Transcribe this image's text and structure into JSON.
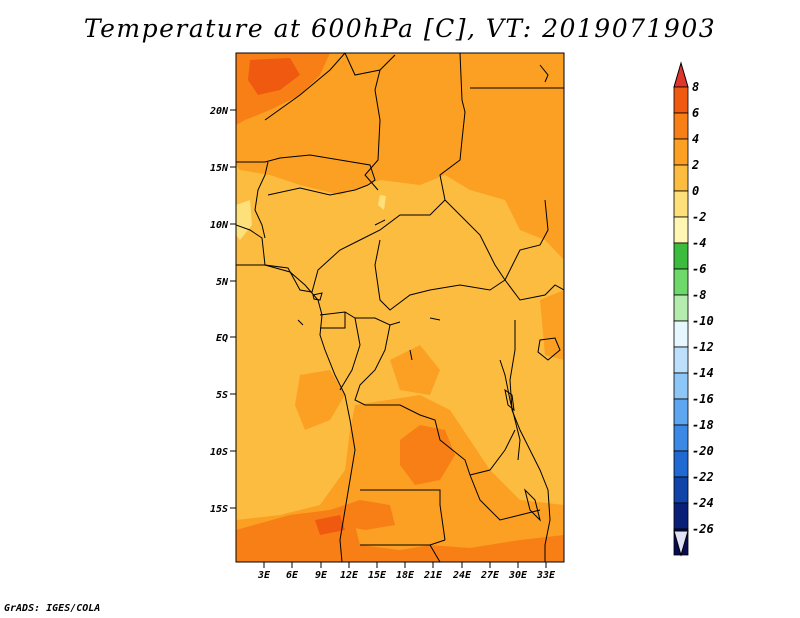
{
  "title": "Temperature at 600hPa [C], VT: 2019071903",
  "credit": "GrADS: IGES/COLA",
  "y_axis_labels": [
    "20N",
    "15N",
    "10N",
    "5N",
    "EQ",
    "5S",
    "10S",
    "15S"
  ],
  "x_axis_labels": [
    "3E",
    "6E",
    "9E",
    "12E",
    "15E",
    "18E",
    "21E",
    "24E",
    "27E",
    "30E",
    "33E"
  ],
  "legend": {
    "labels": [
      "8",
      "6",
      "4",
      "2",
      "0",
      "-2",
      "-4",
      "-6",
      "-8",
      "-10",
      "-12",
      "-14",
      "-16",
      "-18",
      "-20",
      "-22",
      "-24",
      "-26"
    ],
    "colors": [
      "#e0352b",
      "#f05a10",
      "#f77f15",
      "#fba022",
      "#fcbc40",
      "#fde07a",
      "#fff6b4",
      "#3cbc3c",
      "#6fd86a",
      "#b4ecaf",
      "#e6f7ff",
      "#bcdffc",
      "#8ec6f7",
      "#5ea7f0",
      "#3c89e5",
      "#2169d2",
      "#1144a8",
      "#0a1f78",
      "#070c52",
      "#e1e1f6"
    ]
  }
}
